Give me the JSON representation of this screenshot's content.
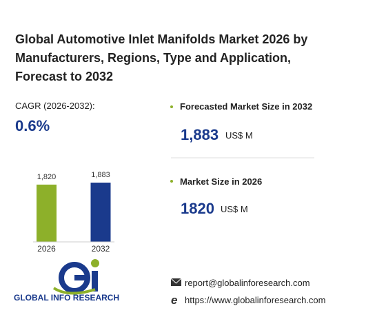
{
  "header": {
    "title": "Global Automotive Inlet Manifolds Market 2026 by Manufacturers, Regions, Type and Application, Forecast to 2032"
  },
  "cagr": {
    "label": "CAGR (2026-2032):",
    "value": "0.6%"
  },
  "chart_data": {
    "type": "bar",
    "categories": [
      "2026",
      "2032"
    ],
    "values": [
      1820,
      1883
    ],
    "value_labels": [
      "1,820",
      "1,883"
    ],
    "colors": [
      "#8db02a",
      "#1a3a8c"
    ]
  },
  "stats": [
    {
      "label": "Forecasted Market Size in 2032",
      "value": "1,883",
      "unit": "US$ M"
    },
    {
      "label": "Market Size in 2026",
      "value": "1820",
      "unit": "US$ M"
    }
  ],
  "logo": {
    "text": "GLOBAL INFO RESEARCH"
  },
  "contact": {
    "email": "report@globalinforesearch.com",
    "website": "https://www.globalinforesearch.com"
  }
}
